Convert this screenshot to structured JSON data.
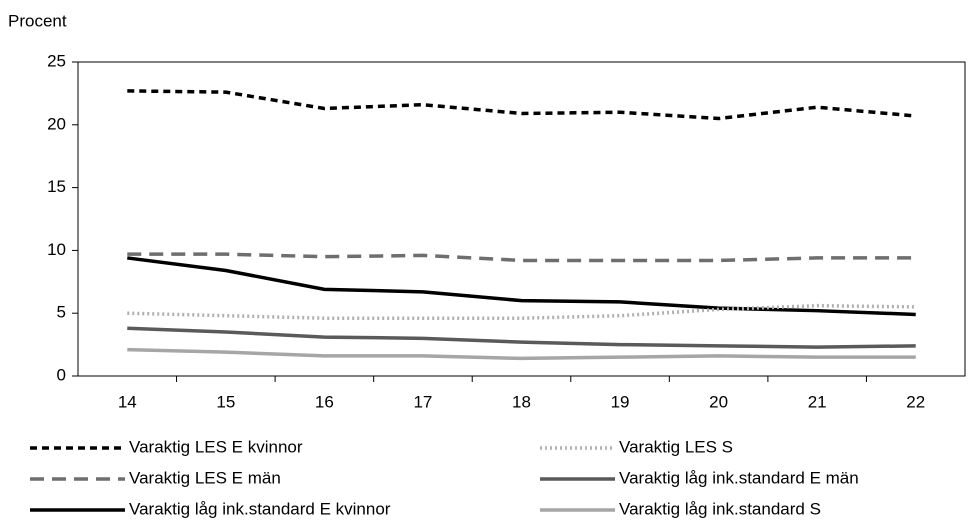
{
  "chart_data": {
    "type": "line",
    "y_label": "Procent",
    "categories": [
      "14",
      "15",
      "16",
      "17",
      "18",
      "19",
      "20",
      "21",
      "22"
    ],
    "ylim": [
      0,
      25
    ],
    "yticks": [
      0,
      5,
      10,
      15,
      20,
      25
    ],
    "series": [
      {
        "name": "Varaktig LES E kvinnor",
        "color": "#000000",
        "linestyle": "dashed",
        "values": [
          22.7,
          22.6,
          21.3,
          21.6,
          20.9,
          21.0,
          20.5,
          21.4,
          20.7
        ]
      },
      {
        "name": "Varaktig LES E män",
        "color": "#6e6e6e",
        "linestyle": "longdash",
        "values": [
          9.7,
          9.7,
          9.5,
          9.6,
          9.2,
          9.2,
          9.2,
          9.4,
          9.4
        ]
      },
      {
        "name": "Varaktig låg ink.standard E kvinnor",
        "color": "#000000",
        "linestyle": "solid",
        "values": [
          9.4,
          8.4,
          6.9,
          6.7,
          6.0,
          5.9,
          5.4,
          5.2,
          4.9
        ]
      },
      {
        "name": "Varaktig LES S",
        "color": "#b0b0b0",
        "linestyle": "dotted",
        "values": [
          5.0,
          4.8,
          4.6,
          4.6,
          4.6,
          4.8,
          5.3,
          5.6,
          5.5
        ]
      },
      {
        "name": "Varaktig låg ink.standard E män",
        "color": "#5a5a5a",
        "linestyle": "solid",
        "values": [
          3.8,
          3.5,
          3.1,
          3.0,
          2.7,
          2.5,
          2.4,
          2.3,
          2.4
        ]
      },
      {
        "name": "Varaktig låg ink.standard S",
        "color": "#a6a6a6",
        "linestyle": "solid",
        "values": [
          2.1,
          1.9,
          1.6,
          1.6,
          1.4,
          1.5,
          1.6,
          1.5,
          1.5
        ]
      }
    ]
  }
}
